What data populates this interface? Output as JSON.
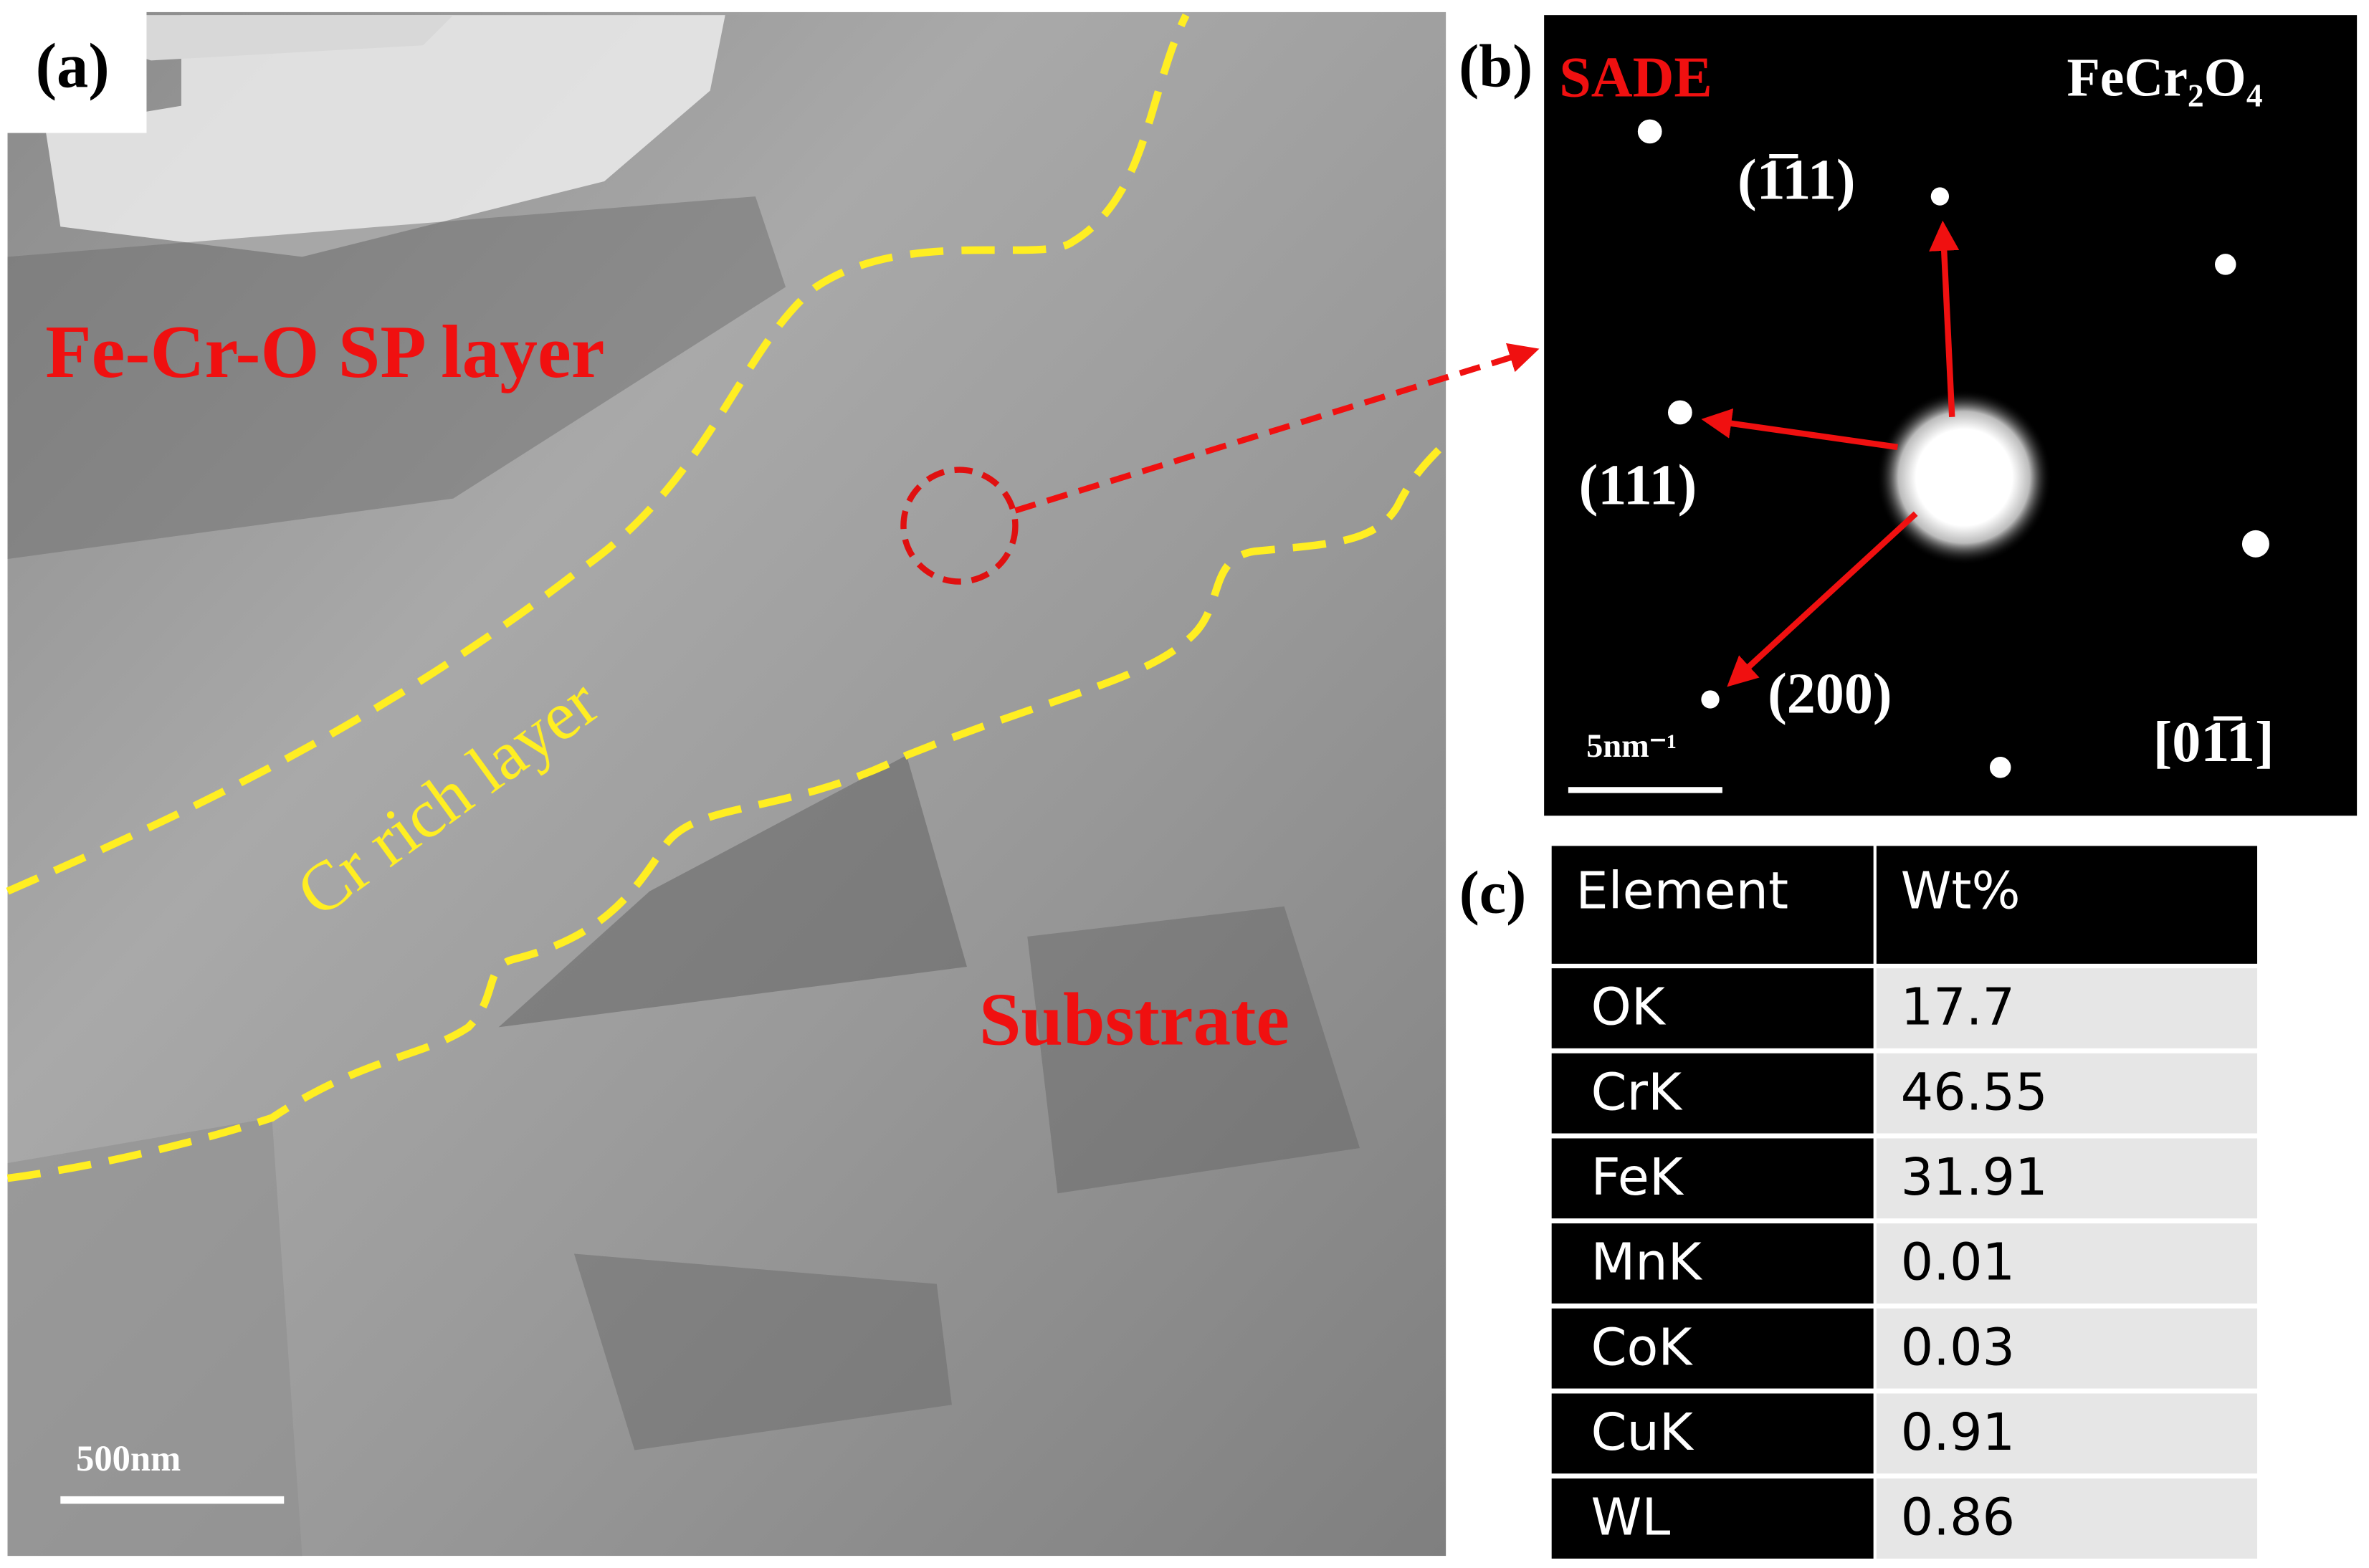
{
  "panel_a": {
    "label": "(a)",
    "layer_top": "Fe-Cr-O SP layer",
    "layer_middle": "Cr rich layer",
    "layer_bottom": "Substrate",
    "scale_bar": "500nm"
  },
  "panel_b": {
    "label": "(b)",
    "title": "SADE",
    "phase": "FeCr₂O₄",
    "spot_1": "(1̅11)",
    "spot_2": "(111)",
    "spot_3": "(200)",
    "zone_axis": "[01̅1]",
    "scale_bar": "5nm⁻¹"
  },
  "panel_c": {
    "label": "(c)",
    "table": {
      "header": [
        "Element",
        "Wt%"
      ],
      "rows": [
        [
          "OK",
          17.7
        ],
        [
          "CrK",
          46.55
        ],
        [
          "FeK",
          31.91
        ],
        [
          "MnK",
          0.01
        ],
        [
          "CoK",
          0.03
        ],
        [
          "CuK",
          0.91
        ],
        [
          "WL",
          0.86
        ]
      ]
    }
  }
}
